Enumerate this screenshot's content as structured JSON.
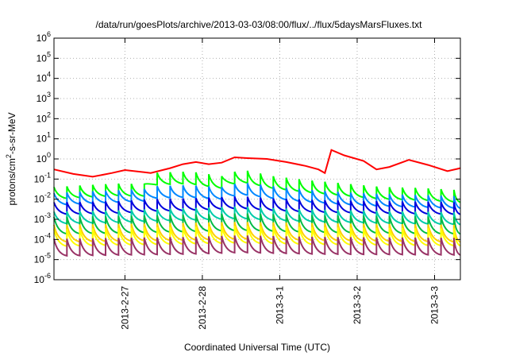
{
  "chart_data": {
    "type": "line",
    "title": "/data/run/goesPlots/archive/2013-03-03/08:00/flux/../flux/5daysMarsFluxes.txt",
    "xlabel": "Coordinated Universal Time (UTC)",
    "ylabel": "protons/cm2-s-sr-MeV",
    "ylabel_parts": {
      "pre": "protons/cm",
      "sup": "2",
      "post": "-s-sr-MeV"
    },
    "yscale": "log",
    "ylim": [
      1e-06,
      1000000.0
    ],
    "y_tick_exponents": [
      -6,
      -5,
      -4,
      -3,
      -2,
      -1,
      0,
      1,
      2,
      3,
      4,
      5,
      6
    ],
    "y_tick_base": "10",
    "xlim": [
      "2013-02-26T02:00",
      "2013-03-03T08:00"
    ],
    "x_ticks": [
      {
        "label": "2013-2-27",
        "time": "2013-02-27T00:00"
      },
      {
        "label": "2013-2-28",
        "time": "2013-02-28T00:00"
      },
      {
        "label": "2013-3-1",
        "time": "2013-03-01T00:00"
      },
      {
        "label": "2013-3-2",
        "time": "2013-03-02T00:00"
      },
      {
        "label": "2013-3-3",
        "time": "2013-03-03T00:00"
      }
    ],
    "grid": true,
    "legend": "none",
    "sawtooth_period_hours": 4,
    "series": [
      {
        "color": "#ff0000",
        "points": [
          [
            "2013-02-26T02:00",
            0.3
          ],
          [
            "2013-02-26T08:00",
            0.18
          ],
          [
            "2013-02-26T14:00",
            0.13
          ],
          [
            "2013-02-26T20:00",
            0.2
          ],
          [
            "2013-02-27T00:00",
            0.28
          ],
          [
            "2013-02-27T06:00",
            0.22
          ],
          [
            "2013-02-27T08:00",
            0.2
          ],
          [
            "2013-02-27T14:00",
            0.35
          ],
          [
            "2013-02-27T18:00",
            0.55
          ],
          [
            "2013-02-27T22:00",
            0.7
          ],
          [
            "2013-02-28T02:00",
            0.55
          ],
          [
            "2013-02-28T06:00",
            0.65
          ],
          [
            "2013-02-28T10:00",
            1.2
          ],
          [
            "2013-02-28T14:00",
            1.1
          ],
          [
            "2013-02-28T20:00",
            1.0
          ],
          [
            "2013-03-01T02:00",
            0.7
          ],
          [
            "2013-03-01T08:00",
            0.45
          ],
          [
            "2013-03-01T12:00",
            0.3
          ],
          [
            "2013-03-01T14:00",
            0.2
          ],
          [
            "2013-03-01T16:00",
            2.8
          ],
          [
            "2013-03-01T20:00",
            1.5
          ],
          [
            "2013-03-02T02:00",
            0.8
          ],
          [
            "2013-03-02T06:00",
            0.3
          ],
          [
            "2013-03-02T10:00",
            0.4
          ],
          [
            "2013-03-02T16:00",
            0.9
          ],
          [
            "2013-03-02T22:00",
            0.5
          ],
          [
            "2013-03-03T04:00",
            0.25
          ],
          [
            "2013-03-03T08:00",
            0.35
          ]
        ]
      },
      {
        "color": "#00ff00",
        "points": [
          [
            "2013-02-26T02:00",
            0.02
          ],
          [
            "2013-02-26T12:00",
            0.025
          ],
          [
            "2013-02-26T22:00",
            0.03
          ],
          [
            "2013-02-27T06:00",
            0.028
          ],
          [
            "2013-02-27T08:00",
            0.1
          ],
          [
            "2013-02-27T20:00",
            0.12
          ],
          [
            "2013-02-28T06:00",
            0.07
          ],
          [
            "2013-02-28T12:00",
            0.15
          ],
          [
            "2013-02-28T22:00",
            0.07
          ],
          [
            "2013-03-01T08:00",
            0.045
          ],
          [
            "2013-03-01T20:00",
            0.03
          ],
          [
            "2013-03-02T08:00",
            0.02
          ],
          [
            "2013-03-02T20:00",
            0.018
          ],
          [
            "2013-03-03T08:00",
            0.014
          ]
        ]
      },
      {
        "color": "#0088ff",
        "points": [
          [
            "2013-02-26T02:00",
            0.01
          ],
          [
            "2013-02-26T12:00",
            0.012
          ],
          [
            "2013-02-26T22:00",
            0.014
          ],
          [
            "2013-02-27T06:00",
            0.016
          ],
          [
            "2013-02-27T08:00",
            0.022
          ],
          [
            "2013-02-27T20:00",
            0.025
          ],
          [
            "2013-02-28T06:00",
            0.02
          ],
          [
            "2013-02-28T12:00",
            0.035
          ],
          [
            "2013-02-28T22:00",
            0.022
          ],
          [
            "2013-03-01T08:00",
            0.015
          ],
          [
            "2013-03-01T20:00",
            0.011
          ],
          [
            "2013-03-02T08:00",
            0.009
          ],
          [
            "2013-03-02T20:00",
            0.008
          ],
          [
            "2013-03-03T08:00",
            0.007
          ]
        ]
      },
      {
        "color": "#0000dd",
        "points": [
          [
            "2013-02-26T02:00",
            0.0035
          ],
          [
            "2013-02-26T22:00",
            0.004
          ],
          [
            "2013-02-27T08:00",
            0.005
          ],
          [
            "2013-02-27T20:00",
            0.0055
          ],
          [
            "2013-02-28T12:00",
            0.007
          ],
          [
            "2013-02-28T22:00",
            0.0055
          ],
          [
            "2013-03-01T12:00",
            0.0045
          ],
          [
            "2013-03-02T08:00",
            0.004
          ],
          [
            "2013-03-03T08:00",
            0.0035
          ]
        ]
      },
      {
        "color": "#00ccaa",
        "points": [
          [
            "2013-02-26T02:00",
            0.0012
          ],
          [
            "2013-02-26T22:00",
            0.0014
          ],
          [
            "2013-02-27T08:00",
            0.0016
          ],
          [
            "2013-02-27T20:00",
            0.0018
          ],
          [
            "2013-02-28T12:00",
            0.0022
          ],
          [
            "2013-02-28T22:00",
            0.0018
          ],
          [
            "2013-03-01T12:00",
            0.0015
          ],
          [
            "2013-03-02T08:00",
            0.0013
          ],
          [
            "2013-03-03T08:00",
            0.0011
          ]
        ]
      },
      {
        "color": "#00bb44",
        "points": [
          [
            "2013-02-26T02:00",
            0.0005
          ],
          [
            "2013-02-26T22:00",
            0.00055
          ],
          [
            "2013-02-27T20:00",
            0.00065
          ],
          [
            "2013-02-28T12:00",
            0.00075
          ],
          [
            "2013-03-01T12:00",
            0.0006
          ],
          [
            "2013-03-03T08:00",
            0.0005
          ]
        ]
      },
      {
        "color": "#ffd000",
        "points": [
          [
            "2013-02-26T02:00",
            0.0002
          ],
          [
            "2013-02-26T22:00",
            0.00022
          ],
          [
            "2013-02-27T20:00",
            0.00025
          ],
          [
            "2013-02-28T12:00",
            0.00028
          ],
          [
            "2013-03-01T12:00",
            0.00024
          ],
          [
            "2013-03-03T08:00",
            0.0002
          ]
        ]
      },
      {
        "color": "#ffff00",
        "points": [
          [
            "2013-02-26T02:00",
            0.00012
          ],
          [
            "2013-02-26T22:00",
            0.00014
          ],
          [
            "2013-02-27T20:00",
            0.00016
          ],
          [
            "2013-02-28T12:00",
            0.00018
          ],
          [
            "2013-03-01T12:00",
            0.00015
          ],
          [
            "2013-03-03T08:00",
            0.00013
          ]
        ]
      },
      {
        "color": "#993366",
        "points": [
          [
            "2013-02-26T02:00",
            4e-05
          ],
          [
            "2013-02-26T22:00",
            4.5e-05
          ],
          [
            "2013-02-27T20:00",
            5e-05
          ],
          [
            "2013-02-28T12:00",
            6e-05
          ],
          [
            "2013-03-01T12:00",
            5e-05
          ],
          [
            "2013-03-03T08:00",
            4.5e-05
          ]
        ]
      }
    ]
  }
}
